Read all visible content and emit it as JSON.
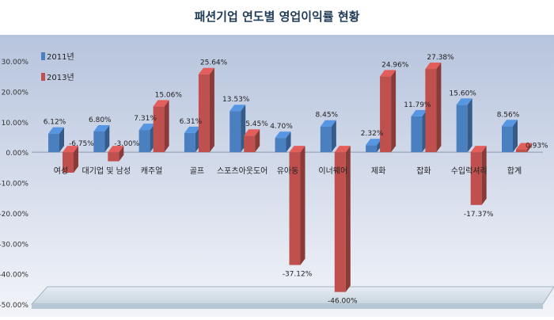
{
  "chart_data": {
    "type": "bar",
    "title": "패션기업 연도별 영업이익률 현황",
    "categories": [
      "여성",
      "대기업 및 남성",
      "캐주얼",
      "골프",
      "스포츠아웃도어",
      "유아동",
      "이너웨어",
      "제화",
      "잡화",
      "수입럭셔리",
      "합계"
    ],
    "series": [
      {
        "name": "2011년",
        "values": [
          6.12,
          6.8,
          7.31,
          6.31,
          13.53,
          4.7,
          8.45,
          2.32,
          11.79,
          15.6,
          8.56
        ],
        "labels": [
          "6.12%",
          "6.80%",
          "7.31%",
          "6.31%",
          "13.53%",
          "4.70%",
          "8.45%",
          "2.32%",
          "11.79%",
          "15.60%",
          "8.56%"
        ]
      },
      {
        "name": "2013년",
        "values": [
          -6.75,
          -3.0,
          15.06,
          25.64,
          5.45,
          -37.12,
          -46.0,
          24.96,
          27.38,
          -17.37,
          0.93
        ],
        "labels": [
          "-6.75%",
          "-3.00%",
          "15.06%",
          "25.64%",
          "5.45%",
          "-37.12%",
          "-46.00%",
          "24.96%",
          "27.38%",
          "-17.37%",
          "0.93%"
        ]
      }
    ],
    "yticks": [
      "30.00%",
      "20.00%",
      "10.00%",
      "0.00%",
      "-10.00%",
      "-20.00%",
      "-30.00%",
      "-40.00%",
      "-50.00%"
    ],
    "ylim": [
      -50,
      30
    ],
    "grid": false,
    "legend_position": "top-left",
    "colors": {
      "series_2011": "#4a7fc0",
      "series_2013": "#c0504d",
      "background_top": "#b7c4dd",
      "background_bottom": "#f2f4f9"
    }
  }
}
